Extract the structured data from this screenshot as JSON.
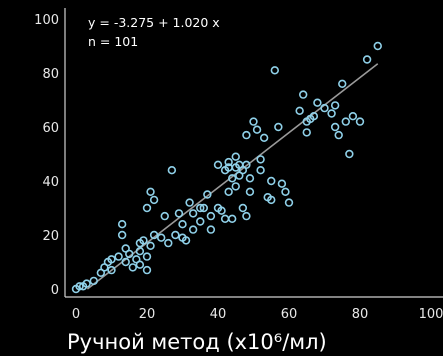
{
  "chart_data": {
    "type": "scatter",
    "title": "",
    "xlabel": "Ручной метод (х10⁶/мл)",
    "ylabel": "",
    "xlim": [
      -2,
      102
    ],
    "ylim": [
      -2,
      102
    ],
    "x_ticks": [
      0,
      20,
      40,
      60,
      80,
      100
    ],
    "x_tick_labels": [
      "0",
      "20",
      "40",
      "60",
      "80",
      "100"
    ],
    "y_ticks": [
      0,
      20,
      40,
      60,
      80,
      100
    ],
    "y_tick_labels": [
      "0",
      "20",
      "40",
      "60",
      "80",
      "100"
    ],
    "grid": false,
    "annotations": [
      "y = -3.275 + 1.020 x",
      "n = 101"
    ],
    "regression_line": {
      "intercept": -3.275,
      "slope": 1.02,
      "x_range": [
        0,
        85
      ]
    },
    "colors": {
      "points": "#8fd0e8",
      "line": "#9a9a9a",
      "axis": "#d0d0d0",
      "background": "#000000"
    },
    "points": [
      [
        0,
        0
      ],
      [
        1,
        1
      ],
      [
        2,
        1
      ],
      [
        3,
        2
      ],
      [
        5,
        3
      ],
      [
        7,
        6
      ],
      [
        8,
        8
      ],
      [
        9,
        10
      ],
      [
        10,
        11
      ],
      [
        10,
        7
      ],
      [
        12,
        12
      ],
      [
        13,
        20
      ],
      [
        13,
        24
      ],
      [
        14,
        15
      ],
      [
        14,
        10
      ],
      [
        15,
        13
      ],
      [
        16,
        8
      ],
      [
        17,
        11
      ],
      [
        18,
        9
      ],
      [
        18,
        14
      ],
      [
        18,
        17
      ],
      [
        19,
        18
      ],
      [
        20,
        7
      ],
      [
        20,
        12
      ],
      [
        20,
        30
      ],
      [
        21,
        16
      ],
      [
        21,
        36
      ],
      [
        22,
        33
      ],
      [
        22,
        20
      ],
      [
        24,
        19
      ],
      [
        25,
        27
      ],
      [
        26,
        17
      ],
      [
        27,
        44
      ],
      [
        28,
        20
      ],
      [
        29,
        28
      ],
      [
        30,
        19
      ],
      [
        30,
        24
      ],
      [
        31,
        18
      ],
      [
        32,
        32
      ],
      [
        33,
        22
      ],
      [
        33,
        28
      ],
      [
        35,
        25
      ],
      [
        35,
        30
      ],
      [
        36,
        30
      ],
      [
        37,
        35
      ],
      [
        38,
        27
      ],
      [
        38,
        22
      ],
      [
        40,
        30
      ],
      [
        40,
        46
      ],
      [
        41,
        29
      ],
      [
        42,
        26
      ],
      [
        42,
        44
      ],
      [
        43,
        45
      ],
      [
        43,
        47
      ],
      [
        43,
        36
      ],
      [
        44,
        41
      ],
      [
        44,
        26
      ],
      [
        45,
        45
      ],
      [
        45,
        49
      ],
      [
        45,
        38
      ],
      [
        46,
        42
      ],
      [
        46,
        46
      ],
      [
        47,
        44
      ],
      [
        47,
        30
      ],
      [
        48,
        46
      ],
      [
        48,
        57
      ],
      [
        48,
        27
      ],
      [
        49,
        41
      ],
      [
        49,
        36
      ],
      [
        50,
        62
      ],
      [
        51,
        59
      ],
      [
        52,
        48
      ],
      [
        52,
        44
      ],
      [
        53,
        56
      ],
      [
        54,
        34
      ],
      [
        55,
        33
      ],
      [
        55,
        40
      ],
      [
        56,
        81
      ],
      [
        57,
        60
      ],
      [
        58,
        39
      ],
      [
        59,
        36
      ],
      [
        60,
        32
      ],
      [
        63,
        66
      ],
      [
        64,
        72
      ],
      [
        65,
        62
      ],
      [
        65,
        58
      ],
      [
        66,
        63
      ],
      [
        67,
        64
      ],
      [
        68,
        69
      ],
      [
        70,
        67
      ],
      [
        72,
        65
      ],
      [
        73,
        68
      ],
      [
        73,
        60
      ],
      [
        74,
        57
      ],
      [
        75,
        76
      ],
      [
        76,
        62
      ],
      [
        77,
        50
      ],
      [
        78,
        64
      ],
      [
        80,
        62
      ],
      [
        82,
        85
      ],
      [
        85,
        90
      ]
    ]
  }
}
